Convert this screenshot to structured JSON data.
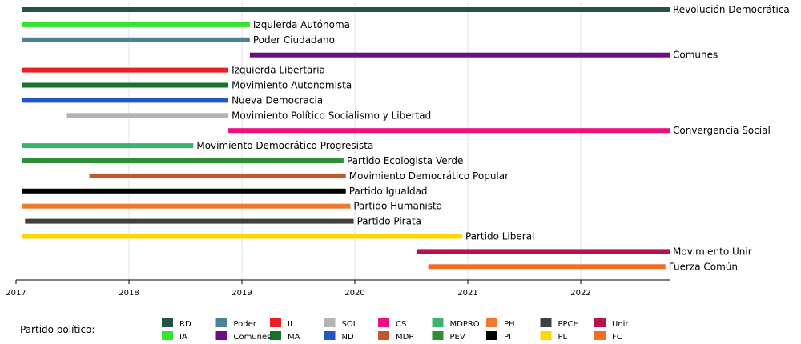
{
  "chart_data": {
    "type": "timeline",
    "xlim": [
      2017,
      2022.8
    ],
    "ticks": [
      "2017",
      "2018",
      "2019",
      "2020",
      "2021",
      "2022"
    ],
    "grid": true,
    "legend_title": "Partido político:",
    "bars": [
      {
        "label": "Revolución Democrática",
        "code": "RD",
        "start": 2017.05,
        "end": 2022.8,
        "color": "#24514b"
      },
      {
        "label": "Izquierda Autónoma",
        "code": "IA",
        "start": 2017.05,
        "end": 2019.07,
        "color": "#33e533"
      },
      {
        "label": "Poder Ciudadano",
        "code": "Poder",
        "start": 2017.05,
        "end": 2019.07,
        "color": "#4a8298"
      },
      {
        "label": "Comunes",
        "code": "Comunes",
        "start": 2019.07,
        "end": 2022.8,
        "color": "#6b0e83"
      },
      {
        "label": "Izquierda Libertaria",
        "code": "IL",
        "start": 2017.05,
        "end": 2018.88,
        "color": "#ec1e24"
      },
      {
        "label": "Movimiento Autonomista",
        "code": "MA",
        "start": 2017.05,
        "end": 2018.88,
        "color": "#1a7229"
      },
      {
        "label": "Nueva Democracia",
        "code": "ND",
        "start": 2017.05,
        "end": 2018.88,
        "color": "#2256c3"
      },
      {
        "label": "Movimiento Político Socialismo y Libertad",
        "code": "SOL",
        "start": 2017.45,
        "end": 2018.88,
        "color": "#b4b4b4"
      },
      {
        "label": "Convergencia Social",
        "code": "CS",
        "start": 2018.88,
        "end": 2022.8,
        "color": "#ee0d7f"
      },
      {
        "label": "Movimiento Democrático Progresista",
        "code": "MDPRO",
        "start": 2017.05,
        "end": 2018.57,
        "color": "#3cb371"
      },
      {
        "label": "Partido Ecologista Verde",
        "code": "PEV",
        "start": 2017.05,
        "end": 2019.9,
        "color": "#2d8e35"
      },
      {
        "label": "Movimiento Democrático Popular",
        "code": "MDP",
        "start": 2017.65,
        "end": 2019.92,
        "color": "#c0582a"
      },
      {
        "label": "Partido Igualdad",
        "code": "PI",
        "start": 2017.05,
        "end": 2019.92,
        "color": "#000000"
      },
      {
        "label": "Partido Humanista",
        "code": "PH",
        "start": 2017.05,
        "end": 2019.96,
        "color": "#f07a2b"
      },
      {
        "label": "Partido Pirata",
        "code": "PPCH",
        "start": 2017.08,
        "end": 2019.99,
        "color": "#404040"
      },
      {
        "label": "Partido Liberal",
        "code": "PL",
        "start": 2017.05,
        "end": 2020.95,
        "color": "#ffd700"
      },
      {
        "label": "Movimiento Unir",
        "code": "Unir",
        "start": 2020.55,
        "end": 2022.8,
        "color": "#b8124e"
      },
      {
        "label": "Fuerza Común",
        "code": "FC",
        "start": 2020.65,
        "end": 2022.75,
        "color": "#f26d21"
      }
    ],
    "legend": [
      [
        "RD",
        "IA"
      ],
      [
        "Poder",
        "Comunes"
      ],
      [
        "IL",
        "MA"
      ],
      [
        "SOL",
        "ND"
      ],
      [
        "CS",
        "MDP"
      ],
      [
        "MDPRO",
        "PEV"
      ],
      [
        "PH",
        "PI"
      ],
      [
        "PPCH",
        "PL"
      ],
      [
        "Unir",
        "FC"
      ]
    ]
  }
}
